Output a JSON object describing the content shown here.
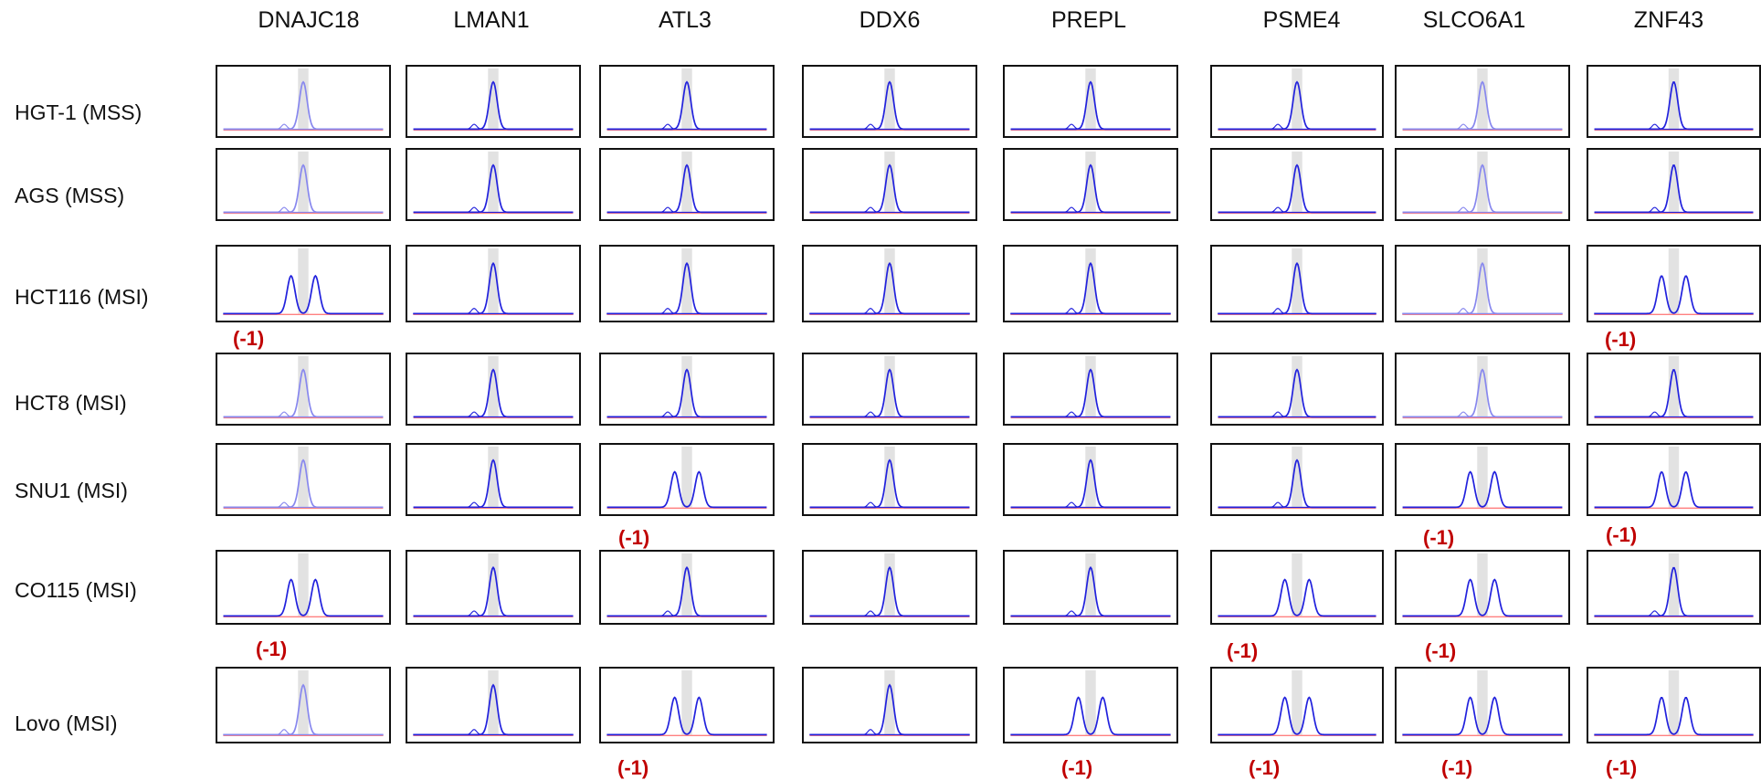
{
  "markers": [
    "DNAJC18",
    "LMAN1",
    "ATL3",
    "DDX6",
    "PREPL",
    "PSME4",
    "SLCO6A1",
    "ZNF43"
  ],
  "cell_lines": [
    "HGT-1 (MSS)",
    "AGS (MSS)",
    "HCT116 (MSI)",
    "HCT8 (MSI)",
    "SNU1 (MSI)",
    "CO115 (MSI)",
    "Lovo (MSI)"
  ],
  "shift_label": "(-1)",
  "colors": {
    "trace_dark": "#2222dd",
    "trace_light": "#8888ee",
    "baseline": "#ff8080",
    "shift_text": "#c00000",
    "highlight_band": "#e2e2e2",
    "frame": "#111111"
  },
  "grid": [
    [
      {
        "p": "s",
        "s": false
      },
      {
        "p": "s",
        "s": false
      },
      {
        "p": "s",
        "s": false
      },
      {
        "p": "s",
        "s": false
      },
      {
        "p": "s",
        "s": false
      },
      {
        "p": "s",
        "s": false
      },
      {
        "p": "s",
        "s": false
      },
      {
        "p": "s",
        "s": false
      }
    ],
    [
      {
        "p": "s",
        "s": false
      },
      {
        "p": "s",
        "s": false
      },
      {
        "p": "s",
        "s": false
      },
      {
        "p": "s",
        "s": false
      },
      {
        "p": "s",
        "s": false
      },
      {
        "p": "s",
        "s": false
      },
      {
        "p": "s",
        "s": false
      },
      {
        "p": "s",
        "s": false
      }
    ],
    [
      {
        "p": "d",
        "s": true
      },
      {
        "p": "s",
        "s": false
      },
      {
        "p": "s",
        "s": false
      },
      {
        "p": "s",
        "s": false
      },
      {
        "p": "s",
        "s": false
      },
      {
        "p": "s",
        "s": false
      },
      {
        "p": "s",
        "s": false
      },
      {
        "p": "d",
        "s": true
      }
    ],
    [
      {
        "p": "s",
        "s": false
      },
      {
        "p": "s",
        "s": false
      },
      {
        "p": "s",
        "s": false
      },
      {
        "p": "s",
        "s": false
      },
      {
        "p": "s",
        "s": false
      },
      {
        "p": "s",
        "s": false
      },
      {
        "p": "s",
        "s": false
      },
      {
        "p": "s",
        "s": false
      }
    ],
    [
      {
        "p": "s",
        "s": false
      },
      {
        "p": "s",
        "s": false
      },
      {
        "p": "d",
        "s": true
      },
      {
        "p": "s",
        "s": false
      },
      {
        "p": "s",
        "s": false
      },
      {
        "p": "s",
        "s": false
      },
      {
        "p": "d",
        "s": true
      },
      {
        "p": "d",
        "s": true
      }
    ],
    [
      {
        "p": "d",
        "s": true
      },
      {
        "p": "s",
        "s": false
      },
      {
        "p": "s",
        "s": false
      },
      {
        "p": "s",
        "s": false
      },
      {
        "p": "s",
        "s": false
      },
      {
        "p": "d",
        "s": true
      },
      {
        "p": "d",
        "s": true
      },
      {
        "p": "s",
        "s": false
      }
    ],
    [
      {
        "p": "s",
        "s": false
      },
      {
        "p": "s",
        "s": false
      },
      {
        "p": "d",
        "s": true
      },
      {
        "p": "s",
        "s": false
      },
      {
        "p": "d",
        "s": true
      },
      {
        "p": "d",
        "s": true
      },
      {
        "p": "d",
        "s": true
      },
      {
        "p": "d",
        "s": true
      }
    ]
  ]
}
